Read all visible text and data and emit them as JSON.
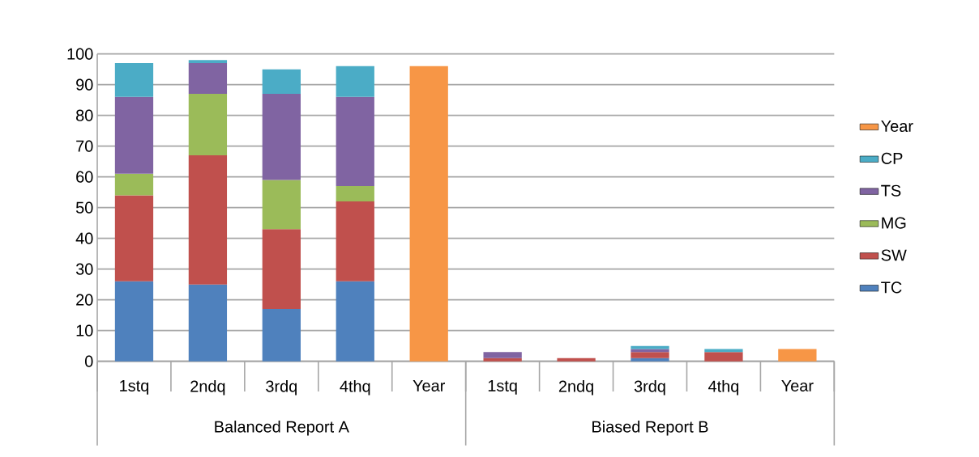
{
  "chart_data": {
    "type": "bar",
    "stacked": true,
    "categories": [
      "1stq",
      "2ndq",
      "3rdq",
      "4thq",
      "Year",
      "1stq",
      "2ndq",
      "3rdq",
      "4thq",
      "Year"
    ],
    "series": [
      {
        "name": "TC",
        "color": "#4f81bd",
        "values": [
          26,
          25,
          17,
          26,
          null,
          0,
          0,
          1,
          0,
          null
        ]
      },
      {
        "name": "SW",
        "color": "#c0504d",
        "values": [
          28,
          42,
          26,
          26,
          null,
          1,
          1,
          2,
          3,
          null
        ]
      },
      {
        "name": "MG",
        "color": "#9bbb59",
        "values": [
          7,
          20,
          16,
          5,
          null,
          0,
          0,
          0,
          0,
          null
        ]
      },
      {
        "name": "TS",
        "color": "#8064a2",
        "values": [
          25,
          10,
          28,
          29,
          null,
          2,
          0,
          1,
          0,
          null
        ]
      },
      {
        "name": "CP",
        "color": "#4bacc6",
        "values": [
          11,
          1,
          8,
          10,
          null,
          0,
          0,
          1,
          1,
          null
        ]
      },
      {
        "name": "Year",
        "color": "#f79646",
        "values": [
          null,
          null,
          null,
          null,
          96,
          null,
          null,
          null,
          null,
          4
        ]
      }
    ],
    "annotations": [
      "Balanced Report A",
      "Biased Report B"
    ],
    "ylim": [
      0,
      100
    ],
    "yticks": [
      0,
      10,
      20,
      30,
      40,
      50,
      60,
      70,
      80,
      90,
      100
    ],
    "grid": "y",
    "legend": "right"
  }
}
